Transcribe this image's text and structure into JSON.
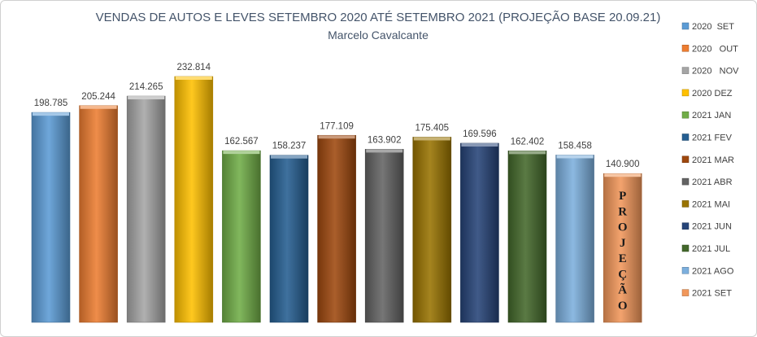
{
  "chart_data": {
    "type": "bar",
    "title": "VENDAS DE AUTOS E LEVES SETEMBRO 2020 ATÉ SETEMBRO 2021 (PROJEÇÃO BASE 20.09.21)",
    "subtitle": "Marcelo Cavalcante",
    "categories": [
      "2020  SET",
      "2020   OUT",
      "2020   NOV",
      "2020 DEZ",
      "2021 JAN",
      "2021 FEV",
      "2021 MAR",
      "2021 ABR",
      "2021 MAI",
      "2021 JUN",
      "2021 JUL",
      "2021 AGO",
      "2021 SET"
    ],
    "values": [
      198.785,
      205.244,
      214.265,
      232.814,
      162.567,
      158.237,
      177.109,
      163.902,
      175.405,
      169.596,
      162.402,
      158.458,
      140.9
    ],
    "value_labels": [
      "198.785",
      "205.244",
      "214.265",
      "232.814",
      "162.567",
      "158.237",
      "177.109",
      "163.902",
      "175.405",
      "169.596",
      "162.402",
      "158.458",
      "140.900"
    ],
    "colors": [
      "#5b9bd5",
      "#ed7d31",
      "#a5a5a5",
      "#ffc000",
      "#70ad47",
      "#255e91",
      "#9e480e",
      "#636363",
      "#997300",
      "#264478",
      "#43682b",
      "#7cafdd",
      "#f1975a"
    ],
    "bar_annotation": {
      "index": 12,
      "text": "PROJEÇÃO"
    },
    "legend_position": "right",
    "grid": false,
    "ylim": [
      0,
      240
    ]
  }
}
